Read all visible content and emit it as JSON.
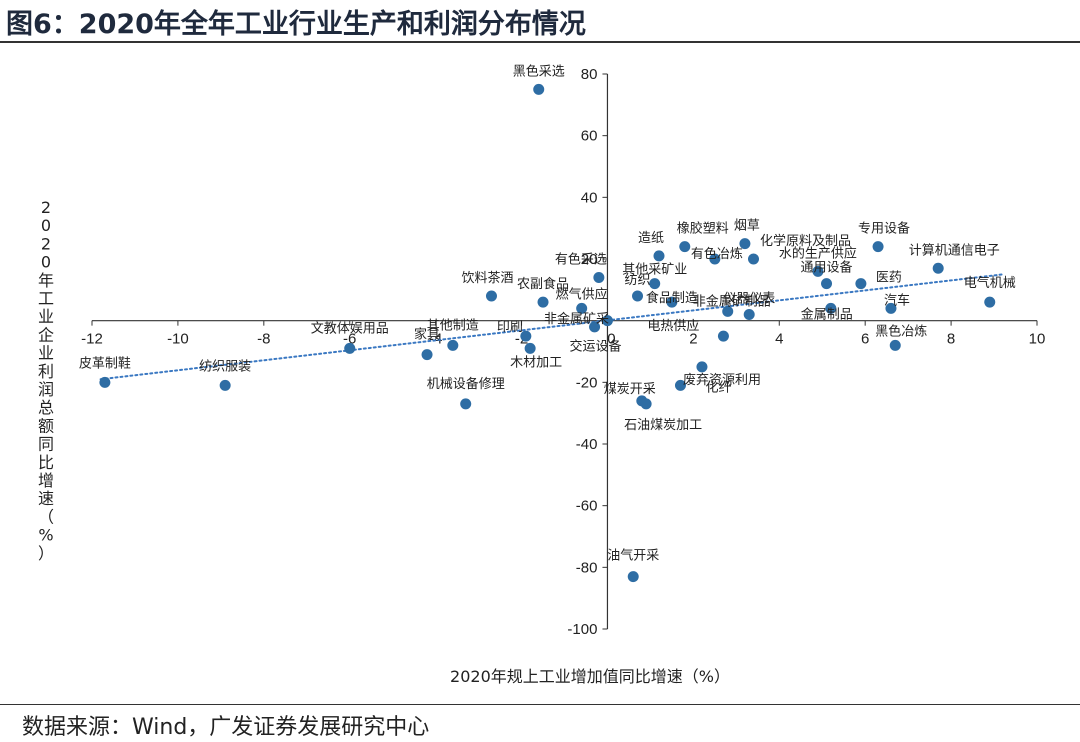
{
  "title": "图6：2020年全年工业行业生产和利润分布情况",
  "source": "数据来源：Wind，广发证券发展研究中心",
  "colors": {
    "point": "#2e6da4",
    "trend": "#3a78c2",
    "axis": "#333333"
  },
  "chart_data": {
    "type": "scatter",
    "title": "图6：2020年全年工业行业生产和利润分布情况",
    "xlabel": "2020年规上工业增加值同比增速（%）",
    "ylabel": "2020年工业企业利润总额同比增速（%）",
    "xlim": [
      -12,
      10
    ],
    "ylim": [
      -100,
      80
    ],
    "xticks": [
      -12,
      -10,
      -8,
      -6,
      -4,
      -2,
      0,
      2,
      4,
      6,
      8,
      10
    ],
    "yticks": [
      80,
      60,
      40,
      20,
      0,
      -20,
      -40,
      -60,
      -80,
      -100
    ],
    "trendline": {
      "style": "dotted",
      "from": [
        -11.8,
        -19
      ],
      "to": [
        9.2,
        15
      ]
    },
    "points": [
      {
        "label": "黑色采选",
        "x": -1.6,
        "y": 75
      },
      {
        "label": "有色采选",
        "x": -0.2,
        "y": 14
      },
      {
        "label": "造纸",
        "x": 1.2,
        "y": 21
      },
      {
        "label": "橡胶塑料",
        "x": 1.8,
        "y": 24
      },
      {
        "label": "烟草",
        "x": 3.2,
        "y": 25
      },
      {
        "label": "化学原料及制品",
        "x": 3.4,
        "y": 20
      },
      {
        "label": "专用设备",
        "x": 6.3,
        "y": 24
      },
      {
        "label": "计算机通信电子",
        "x": 7.7,
        "y": 17
      },
      {
        "label": "电气机械",
        "x": 8.9,
        "y": 6
      },
      {
        "label": "水的生产供应",
        "x": 4.9,
        "y": 16
      },
      {
        "label": "医药",
        "x": 5.9,
        "y": 12
      },
      {
        "label": "汽车",
        "x": 6.6,
        "y": 4
      },
      {
        "label": "黑色冶炼",
        "x": 6.7,
        "y": -8
      },
      {
        "label": "通用设备",
        "x": 5.1,
        "y": 12
      },
      {
        "label": "金属制品",
        "x": 5.2,
        "y": 4
      },
      {
        "label": "其他采矿业",
        "x": 1.1,
        "y": 12
      },
      {
        "label": "有色冶炼",
        "x": 2.5,
        "y": 20
      },
      {
        "label": "纺织",
        "x": 0.7,
        "y": 8
      },
      {
        "label": "食品制造",
        "x": 1.5,
        "y": 6
      },
      {
        "label": "仪器仪表",
        "x": 3.3,
        "y": 2
      },
      {
        "label": "非金属矿制品",
        "x": 2.8,
        "y": 3
      },
      {
        "label": "燃气供应",
        "x": -0.6,
        "y": 4
      },
      {
        "label": "农副食品",
        "x": -1.5,
        "y": 6
      },
      {
        "label": "饮料茶酒",
        "x": -2.7,
        "y": 8
      },
      {
        "label": "非金属矿采",
        "x": -0.3,
        "y": -2
      },
      {
        "label": "电热供应",
        "x": 2.7,
        "y": -5
      },
      {
        "label": "废弃资源利用",
        "x": 2.2,
        "y": -15
      },
      {
        "label": "化纤",
        "x": 1.7,
        "y": -21
      },
      {
        "label": "煤炭开采",
        "x": 0.8,
        "y": -26
      },
      {
        "label": "石油煤炭加工",
        "x": 0.9,
        "y": -27
      },
      {
        "label": "交运设备",
        "x": 0.0,
        "y": 0
      },
      {
        "label": "印刷",
        "x": -1.9,
        "y": -5
      },
      {
        "label": "木材加工",
        "x": -1.8,
        "y": -9
      },
      {
        "label": "其他制造",
        "x": -3.6,
        "y": -8
      },
      {
        "label": "家具",
        "x": -4.2,
        "y": -11
      },
      {
        "label": "文教体娱用品",
        "x": -6.0,
        "y": -9
      },
      {
        "label": "机械设备修理",
        "x": -3.3,
        "y": -27
      },
      {
        "label": "纺织服装",
        "x": -8.9,
        "y": -21
      },
      {
        "label": "皮革制鞋",
        "x": -11.7,
        "y": -20
      },
      {
        "label": "油气开采",
        "x": 0.6,
        "y": -83
      }
    ]
  }
}
